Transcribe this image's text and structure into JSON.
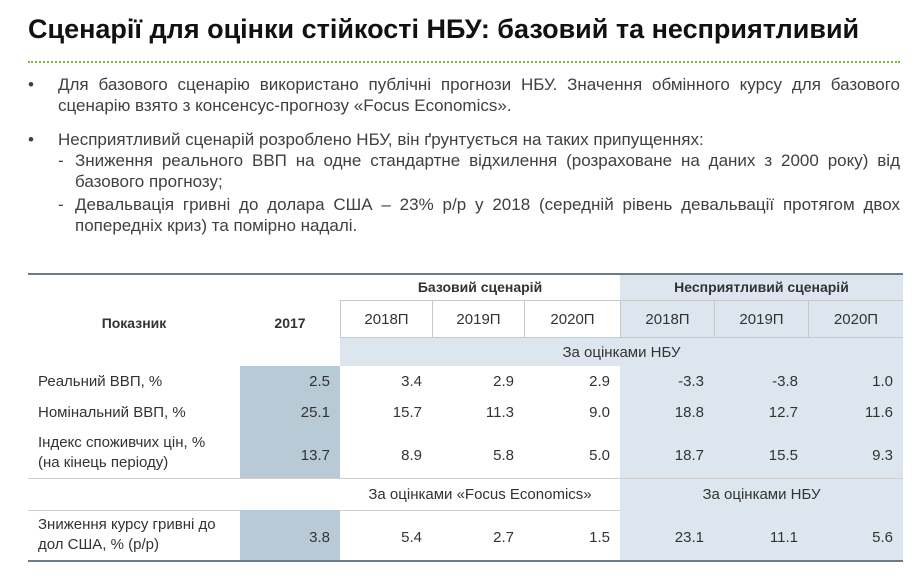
{
  "title": "Сценарії для оцінки стійкості НБУ: базовий та несприятливий",
  "bullets": [
    {
      "text": "Для базового сценарію використано публічні прогнози НБУ. Значення обмінного курсу для базового сценарію взято з консенсус-прогнозу «Focus Economics».",
      "subitems": []
    },
    {
      "text": "Несприятливий сценарій розроблено НБУ, він ґрунтується на таких припущеннях:",
      "subitems": [
        "Зниження реального ВВП на одне стандартне відхилення (розраховане на даних з 2000 року) від базового прогнозу;",
        "Девальвація гривні до долара США – 23% р/р у 2018 (середній рівень девальвації протягом двох попередніх криз) та помірно надалі."
      ]
    }
  ],
  "table": {
    "indicator_header": "Показник",
    "base_year": "2017",
    "groups": [
      "Базовий сценарій",
      "Несприятливий сценарій"
    ],
    "years": [
      "2018П",
      "2019П",
      "2020П",
      "2018П",
      "2019П",
      "2020П"
    ],
    "sections": [
      {
        "sources": [
          "За оцінками НБУ"
        ],
        "rows": [
          {
            "label": [
              "Реальний ВВП, %"
            ],
            "values": [
              "2.5",
              "3.4",
              "2.9",
              "2.9",
              "-3.3",
              "-3.8",
              "1.0"
            ]
          },
          {
            "label": [
              "Номінальний ВВП, %"
            ],
            "values": [
              "25.1",
              "15.7",
              "11.3",
              "9.0",
              "18.8",
              "12.7",
              "11.6"
            ]
          },
          {
            "label": [
              "Індекс споживчих цін, %",
              "(на кінець періоду)"
            ],
            "values": [
              "13.7",
              "8.9",
              "5.8",
              "5.0",
              "18.7",
              "15.5",
              "9.3"
            ]
          }
        ]
      },
      {
        "sources": [
          "За оцінками «Focus Economics»",
          "За оцінками НБУ"
        ],
        "rows": [
          {
            "label": [
              "Зниження курсу гривні до",
              "дол США, % (р/р)"
            ],
            "values": [
              "3.8",
              "5.4",
              "2.7",
              "1.5",
              "23.1",
              "11.1",
              "5.6"
            ]
          }
        ]
      }
    ]
  }
}
